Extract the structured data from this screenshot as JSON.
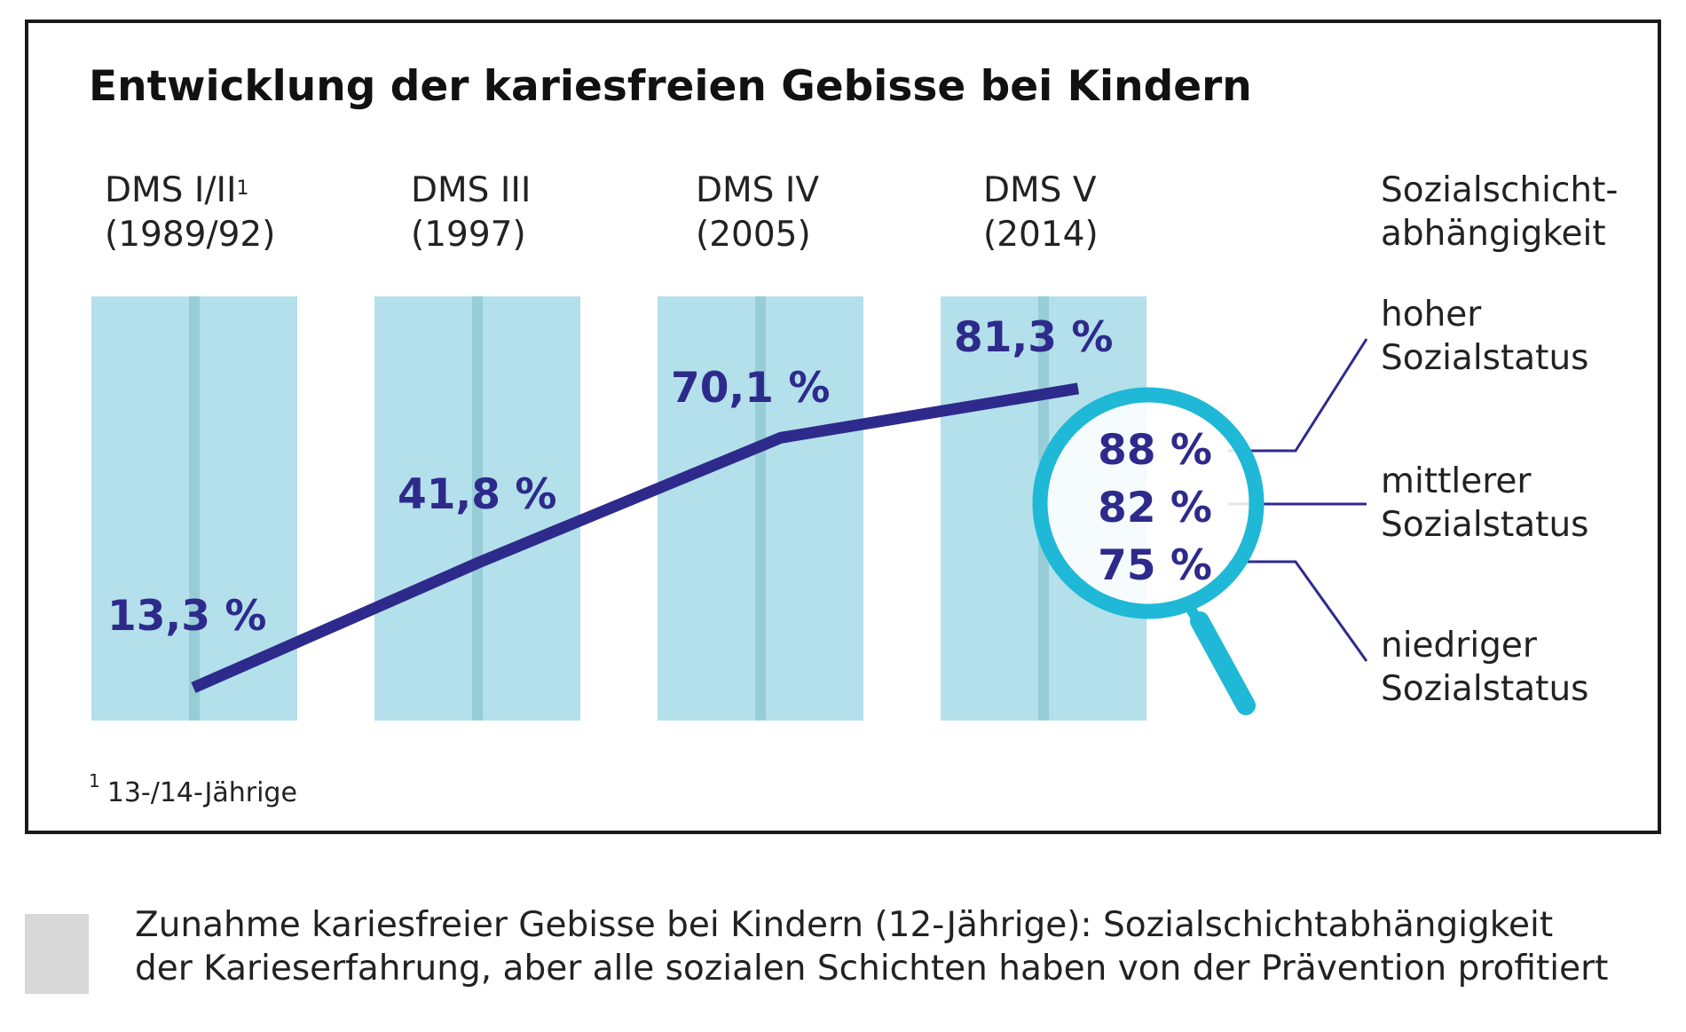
{
  "chart_data": {
    "type": "line",
    "title": "Entwicklung der kariesfreien Gebisse bei Kindern",
    "categories": [
      {
        "name": "DMS I/II",
        "footnote_mark": "1",
        "year": "(1989/92)"
      },
      {
        "name": "DMS III",
        "footnote_mark": "",
        "year": "(1997)"
      },
      {
        "name": "DMS IV",
        "footnote_mark": "",
        "year": "(2005)"
      },
      {
        "name": "DMS V",
        "footnote_mark": "",
        "year": "(2014)"
      }
    ],
    "series": [
      {
        "values": [
          13.3,
          41.8,
          70.1,
          81.3
        ],
        "labels": [
          "13,3 %",
          "41,8 %",
          "70,1 %",
          "81,3 %"
        ]
      }
    ],
    "ylim": [
      0,
      100
    ],
    "social_status": {
      "heading": [
        "Sozialschicht-",
        "abhängigkeit"
      ],
      "groups": [
        {
          "label": [
            "hoher",
            "Sozialstatus"
          ],
          "value": 88,
          "display": "88 %"
        },
        {
          "label": [
            "mittlerer",
            "Sozialstatus"
          ],
          "value": 82,
          "display": "82 %"
        },
        {
          "label": [
            "niedriger",
            "Sozialstatus"
          ],
          "value": 75,
          "display": "75 %"
        }
      ]
    },
    "footnote": {
      "mark": "1",
      "text": "13-/14-Jährige"
    }
  },
  "caption": {
    "lines": [
      "Zunahme kariesfreier Gebisse bei Kindern (12-Jährige): Sozialschichtabhängigkeit",
      "der Karieserfahrung, aber alle sozialen Schichten haben von der Prävention profitiert"
    ]
  },
  "colors": {
    "bar": "#b3e0ea",
    "bar_center": "#96cdd6",
    "line": "#2e2a8c",
    "value_text": "#2e2a8c",
    "magnifier": "#1fb8d6",
    "connector": "#2e2a8c"
  },
  "icons": {
    "magnifier": "magnifying-glass-icon"
  }
}
